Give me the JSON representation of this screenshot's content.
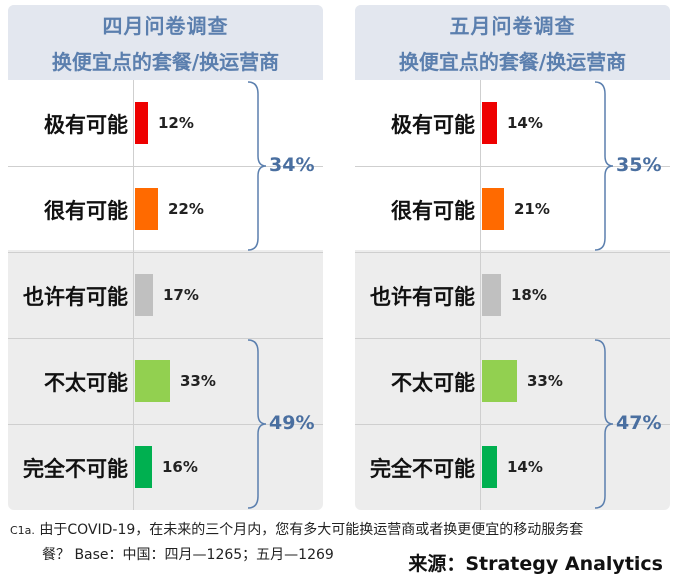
{
  "chart_data": [
    {
      "type": "bar",
      "title": "四月问卷调查",
      "subtitle": "换便宜点的套餐/换运营商",
      "categories": [
        "极有可能",
        "很有可能",
        "也许有可能",
        "不太可能",
        "完全不可能"
      ],
      "values": [
        12,
        22,
        17,
        33,
        16
      ],
      "value_labels": [
        "12%",
        "22%",
        "17%",
        "33%",
        "16%"
      ],
      "groups": [
        {
          "label": "34%",
          "categories": [
            "极有可能",
            "很有可能"
          ]
        },
        {
          "label": "49%",
          "categories": [
            "不太可能",
            "完全不可能"
          ]
        }
      ]
    },
    {
      "type": "bar",
      "title": "五月问卷调查",
      "subtitle": "换便宜点的套餐/换运营商",
      "categories": [
        "极有可能",
        "很有可能",
        "也许有可能",
        "不太可能",
        "完全不可能"
      ],
      "values": [
        14,
        21,
        18,
        33,
        14
      ],
      "value_labels": [
        "14%",
        "21%",
        "18%",
        "33%",
        "14%"
      ],
      "groups": [
        {
          "label": "35%",
          "categories": [
            "极有可能",
            "很有可能"
          ]
        },
        {
          "label": "47%",
          "categories": [
            "不太可能",
            "完全不可能"
          ]
        }
      ]
    }
  ],
  "colors": [
    "#ee0000",
    "#ff6a00",
    "#c0c0c0",
    "#92d050",
    "#00b050"
  ],
  "footnote": {
    "code": "C1a.",
    "line1": "由于COVID-19，在未来的三个月内，您有多大可能换运营商或者换更便宜的移动服务套",
    "line2": "餐？  Base：中国：四月—1265；五月—1269"
  },
  "source": "来源：Strategy Analytics"
}
